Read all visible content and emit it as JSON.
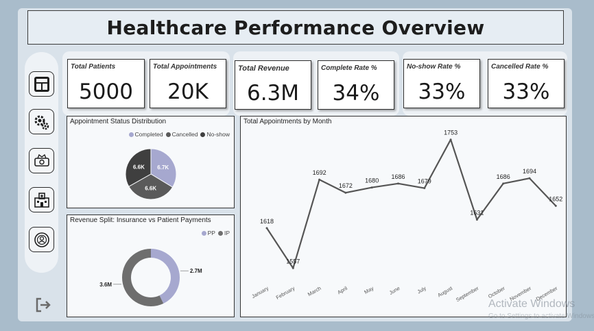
{
  "title": "Healthcare Performance Overview",
  "nav": [
    {
      "icon": "dashboard-icon"
    },
    {
      "icon": "settings-gears-icon"
    },
    {
      "icon": "money-icon"
    },
    {
      "icon": "hospital-icon"
    },
    {
      "icon": "doctor-icon"
    }
  ],
  "logout_icon": "logout-icon",
  "kpis": {
    "total_patients": {
      "label": "Total Patients",
      "value": "5000"
    },
    "total_appointments": {
      "label": "Total Appointments",
      "value": "20K"
    },
    "total_revenue": {
      "label": "Total Revenue",
      "value": "6.3M"
    },
    "complete_rate": {
      "label": "Complete Rate %",
      "value": "34%"
    },
    "noshow_rate": {
      "label": "No-show Rate %",
      "value": "33%"
    },
    "cancelled_rate": {
      "label": "Cancelled Rate %",
      "value": "33%"
    }
  },
  "watermark": {
    "line1": "Activate Windows",
    "line2": "Go to Settings to activate Windows."
  },
  "colors": {
    "completed": "#a6a8cf",
    "cancelled": "#5a5a5a",
    "noshow": "#3f3f3f",
    "pp": "#a6a8cf",
    "ip": "#6e6e6e",
    "line": "#555555"
  },
  "chart_data": [
    {
      "type": "pie",
      "title": "Appointment Status Distribution",
      "legend": [
        "Completed",
        "Cancelled",
        "No-show"
      ],
      "categories": [
        "Completed",
        "Cancelled",
        "No-show"
      ],
      "values": [
        6.7,
        6.6,
        6.6
      ],
      "data_labels": [
        "6.7K",
        "6.6K",
        "6.6K"
      ],
      "legend_position": "top-right"
    },
    {
      "type": "pie",
      "title": "Revenue Split: Insurance vs Patient Payments",
      "legend": [
        "PP",
        "IP"
      ],
      "categories": [
        "PP",
        "IP"
      ],
      "values": [
        2.7,
        3.6
      ],
      "data_labels": [
        "2.7M",
        "3.6M"
      ],
      "legend_position": "top-right"
    },
    {
      "type": "line",
      "title": "Total Appointments by Month",
      "categories": [
        "January",
        "February",
        "March",
        "April",
        "May",
        "June",
        "July",
        "August",
        "September",
        "October",
        "November",
        "December"
      ],
      "values": [
        1618,
        1557,
        1692,
        1672,
        1680,
        1686,
        1679,
        1753,
        1631,
        1686,
        1694,
        1652
      ],
      "ylim": [
        1550,
        1760
      ],
      "grid": false
    }
  ]
}
